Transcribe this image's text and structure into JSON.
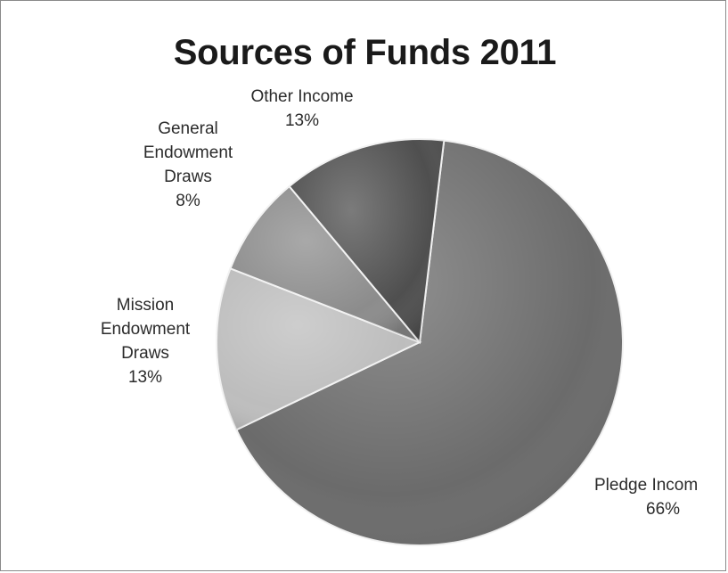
{
  "chart_data": {
    "type": "pie",
    "title": "Sources of Funds 2011",
    "slices": [
      {
        "name": "Pledge Incom",
        "label_lines": [
          "Pledge Incom"
        ],
        "value": 66,
        "value_label": "66%",
        "color": "#6b6b6b"
      },
      {
        "name": "Mission Endowment Draws",
        "label_lines": [
          "Mission",
          "Endowment",
          "Draws"
        ],
        "value": 13,
        "value_label": "13%",
        "color": "#bdbdbd"
      },
      {
        "name": "General Endowment Draws",
        "label_lines": [
          "General",
          "Endowment",
          "Draws"
        ],
        "value": 8,
        "value_label": "8%",
        "color": "#8c8c8c"
      },
      {
        "name": "Other Income",
        "label_lines": [
          "Other Income"
        ],
        "value": 13,
        "value_label": "13%",
        "color": "#4f4f4f"
      }
    ],
    "start": "12 o'clock",
    "direction": "clockwise"
  }
}
